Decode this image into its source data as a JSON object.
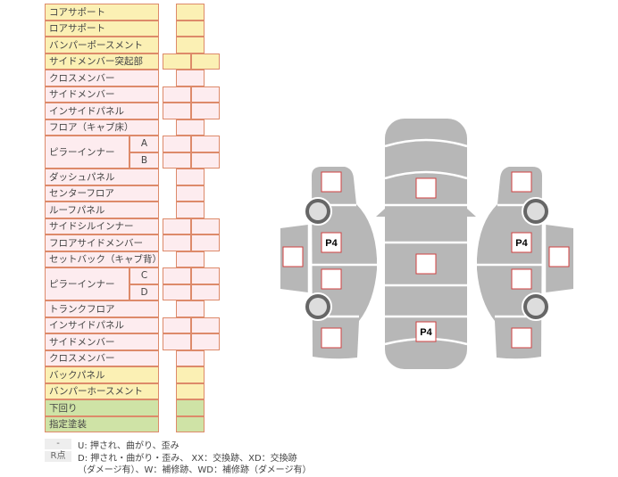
{
  "colors": {
    "yellow": "#fbf0b4",
    "pink": "#fdecef",
    "green": "#cfe3a6",
    "border": "#dd8a6a",
    "body": "#b7b7b7",
    "mark": "#d04040"
  },
  "rows": [
    {
      "label": "コアサポート",
      "color": "yellow",
      "cells": 1
    },
    {
      "label": "ロアサポート",
      "color": "yellow",
      "cells": 1
    },
    {
      "label": "バンパーポースメント",
      "color": "yellow",
      "cells": 1
    },
    {
      "label": "サイドメンバー突起部",
      "color": "yellow",
      "cells": 2
    },
    {
      "label": "クロスメンバー",
      "color": "pink",
      "cells": 1
    },
    {
      "label": "サイドメンバー",
      "color": "pink",
      "cells": 2
    },
    {
      "label": "インサイドパネル",
      "color": "pink",
      "cells": 2
    },
    {
      "label": "フロア（キャブ床）",
      "color": "pink",
      "cells": 1
    },
    {
      "label": "ピラーインナー",
      "color": "pink",
      "cells": 2,
      "subs": [
        "A",
        "B"
      ]
    },
    {
      "label": "ダッシュパネル",
      "color": "pink",
      "cells": 1
    },
    {
      "label": "センターフロア",
      "color": "pink",
      "cells": 1
    },
    {
      "label": "ルーフパネル",
      "color": "pink",
      "cells": 1
    },
    {
      "label": "サイドシルインナー",
      "color": "pink",
      "cells": 2
    },
    {
      "label": "フロアサイドメンバー",
      "color": "pink",
      "cells": 2
    },
    {
      "label": "セットバック（キャブ背）",
      "color": "pink",
      "cells": 1
    },
    {
      "label": "ピラーインナー",
      "color": "pink",
      "cells": 2,
      "subs": [
        "C",
        "D"
      ]
    },
    {
      "label": "トランクフロア",
      "color": "pink",
      "cells": 1
    },
    {
      "label": "インサイドパネル",
      "color": "pink",
      "cells": 2
    },
    {
      "label": "サイドメンバー",
      "color": "pink",
      "cells": 2
    },
    {
      "label": "クロスメンバー",
      "color": "pink",
      "cells": 1
    },
    {
      "label": "バックパネル",
      "color": "yellow",
      "cells": 1
    },
    {
      "label": "バンパーホースメント",
      "color": "yellow",
      "cells": 1
    },
    {
      "label": "下回り",
      "color": "green",
      "cells": 1
    },
    {
      "label": "指定塗装",
      "color": "green",
      "cells": 1
    }
  ],
  "legend": {
    "key1": "-",
    "text1": "U: 押され、曲がり、歪み",
    "key2": "R点",
    "text2": "D: 押され・曲がり・歪み、 XX：交換跡、XD：交換跡",
    "text3": "（ダメージ有）、W：補修跡、WD：補修跡（ダメージ有）"
  },
  "diagram": {
    "marks": [
      {
        "part": "left-front",
        "label": ""
      },
      {
        "part": "left-front-door",
        "label": "P4"
      },
      {
        "part": "left-door-panel",
        "label": ""
      },
      {
        "part": "left-rear-door",
        "label": ""
      },
      {
        "part": "left-rear",
        "label": ""
      },
      {
        "part": "hood",
        "label": ""
      },
      {
        "part": "roof",
        "label": ""
      },
      {
        "part": "trunk",
        "label": "P4"
      },
      {
        "part": "right-front",
        "label": ""
      },
      {
        "part": "right-front-door",
        "label": "P4"
      },
      {
        "part": "right-door-panel",
        "label": ""
      },
      {
        "part": "right-rear-door",
        "label": ""
      },
      {
        "part": "right-rear",
        "label": ""
      }
    ]
  }
}
